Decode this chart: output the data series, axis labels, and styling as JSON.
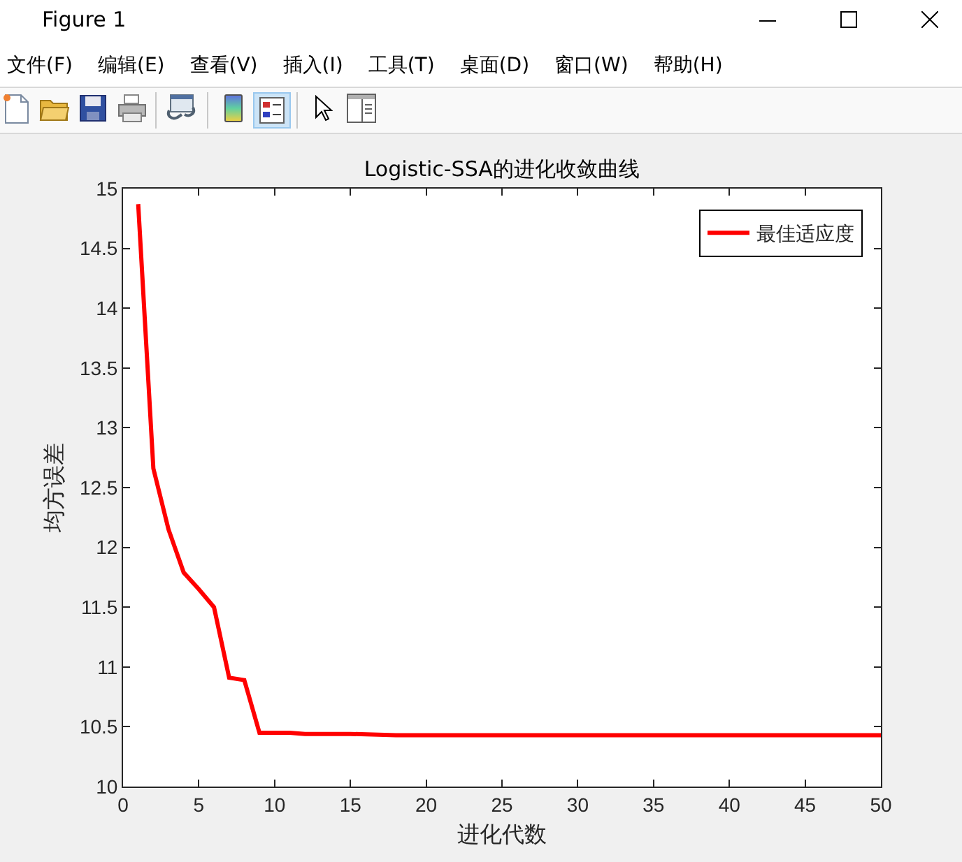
{
  "chart_data": {
    "type": "line",
    "title": "Logistic-SSA的进化收敛曲线",
    "xlabel": "进化代数",
    "ylabel": "均方误差",
    "x": [
      1,
      2,
      3,
      4,
      5,
      6,
      7,
      8,
      9,
      10,
      11,
      12,
      15,
      18,
      20,
      50
    ],
    "series": [
      {
        "name": "最佳适应度",
        "color": "#ff0000",
        "values": [
          14.87,
          12.66,
          12.15,
          11.79,
          11.65,
          11.5,
          10.91,
          10.89,
          10.45,
          10.45,
          10.45,
          10.44,
          10.44,
          10.43,
          10.43,
          10.43
        ]
      }
    ],
    "xlim": [
      0,
      50
    ],
    "xticks": [
      0,
      5,
      10,
      15,
      20,
      25,
      30,
      35,
      40,
      45,
      50
    ],
    "ylim": [
      10,
      15
    ],
    "yticks": [
      10,
      10.5,
      11,
      11.5,
      12,
      12.5,
      13,
      13.5,
      14,
      14.5,
      15
    ],
    "grid": false,
    "legend": "top right",
    "marker": "none",
    "line_style": "solid",
    "annotations": [
      "Figure 1",
      "文件(F)",
      "编辑(E)",
      "查看(V)",
      "插入(I)",
      "工具(T)",
      "桌面(D)",
      "窗口(W)",
      "帮助(H)"
    ]
  }
}
